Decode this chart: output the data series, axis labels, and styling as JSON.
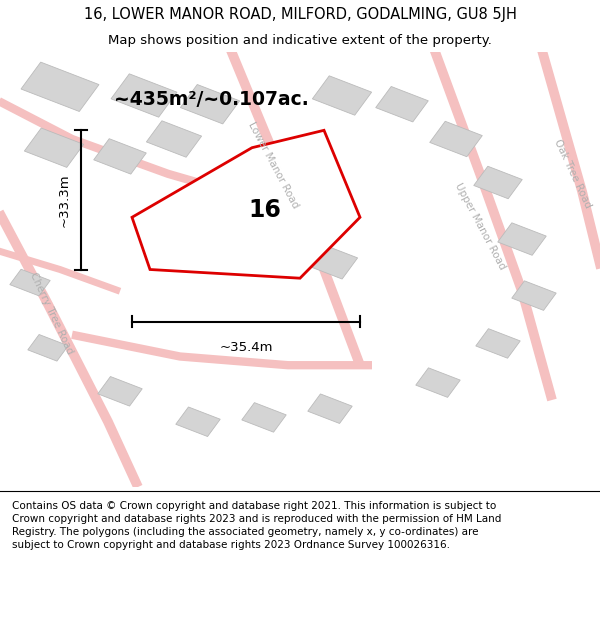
{
  "title_line1": "16, LOWER MANOR ROAD, MILFORD, GODALMING, GU8 5JH",
  "title_line2": "Map shows position and indicative extent of the property.",
  "footer_text": "Contains OS data © Crown copyright and database right 2021. This information is subject to Crown copyright and database rights 2023 and is reproduced with the permission of HM Land Registry. The polygons (including the associated geometry, namely x, y co-ordinates) are subject to Crown copyright and database rights 2023 Ordnance Survey 100026316.",
  "area_label": "~435m²/~0.107ac.",
  "number_label": "16",
  "dim_width": "~35.4m",
  "dim_height": "~33.3m",
  "map_bg": "#f2f2f2",
  "road_color": "#f5c0c0",
  "building_color": "#d4d4d4",
  "building_edge": "#bbbbbb",
  "road_label_color": "#b0b0b0",
  "property_fill": "#ffffff",
  "property_edge": "#dd0000",
  "property_linewidth": 2.0,
  "title_fontsize": 10.5,
  "subtitle_fontsize": 9.5,
  "footer_fontsize": 7.5
}
